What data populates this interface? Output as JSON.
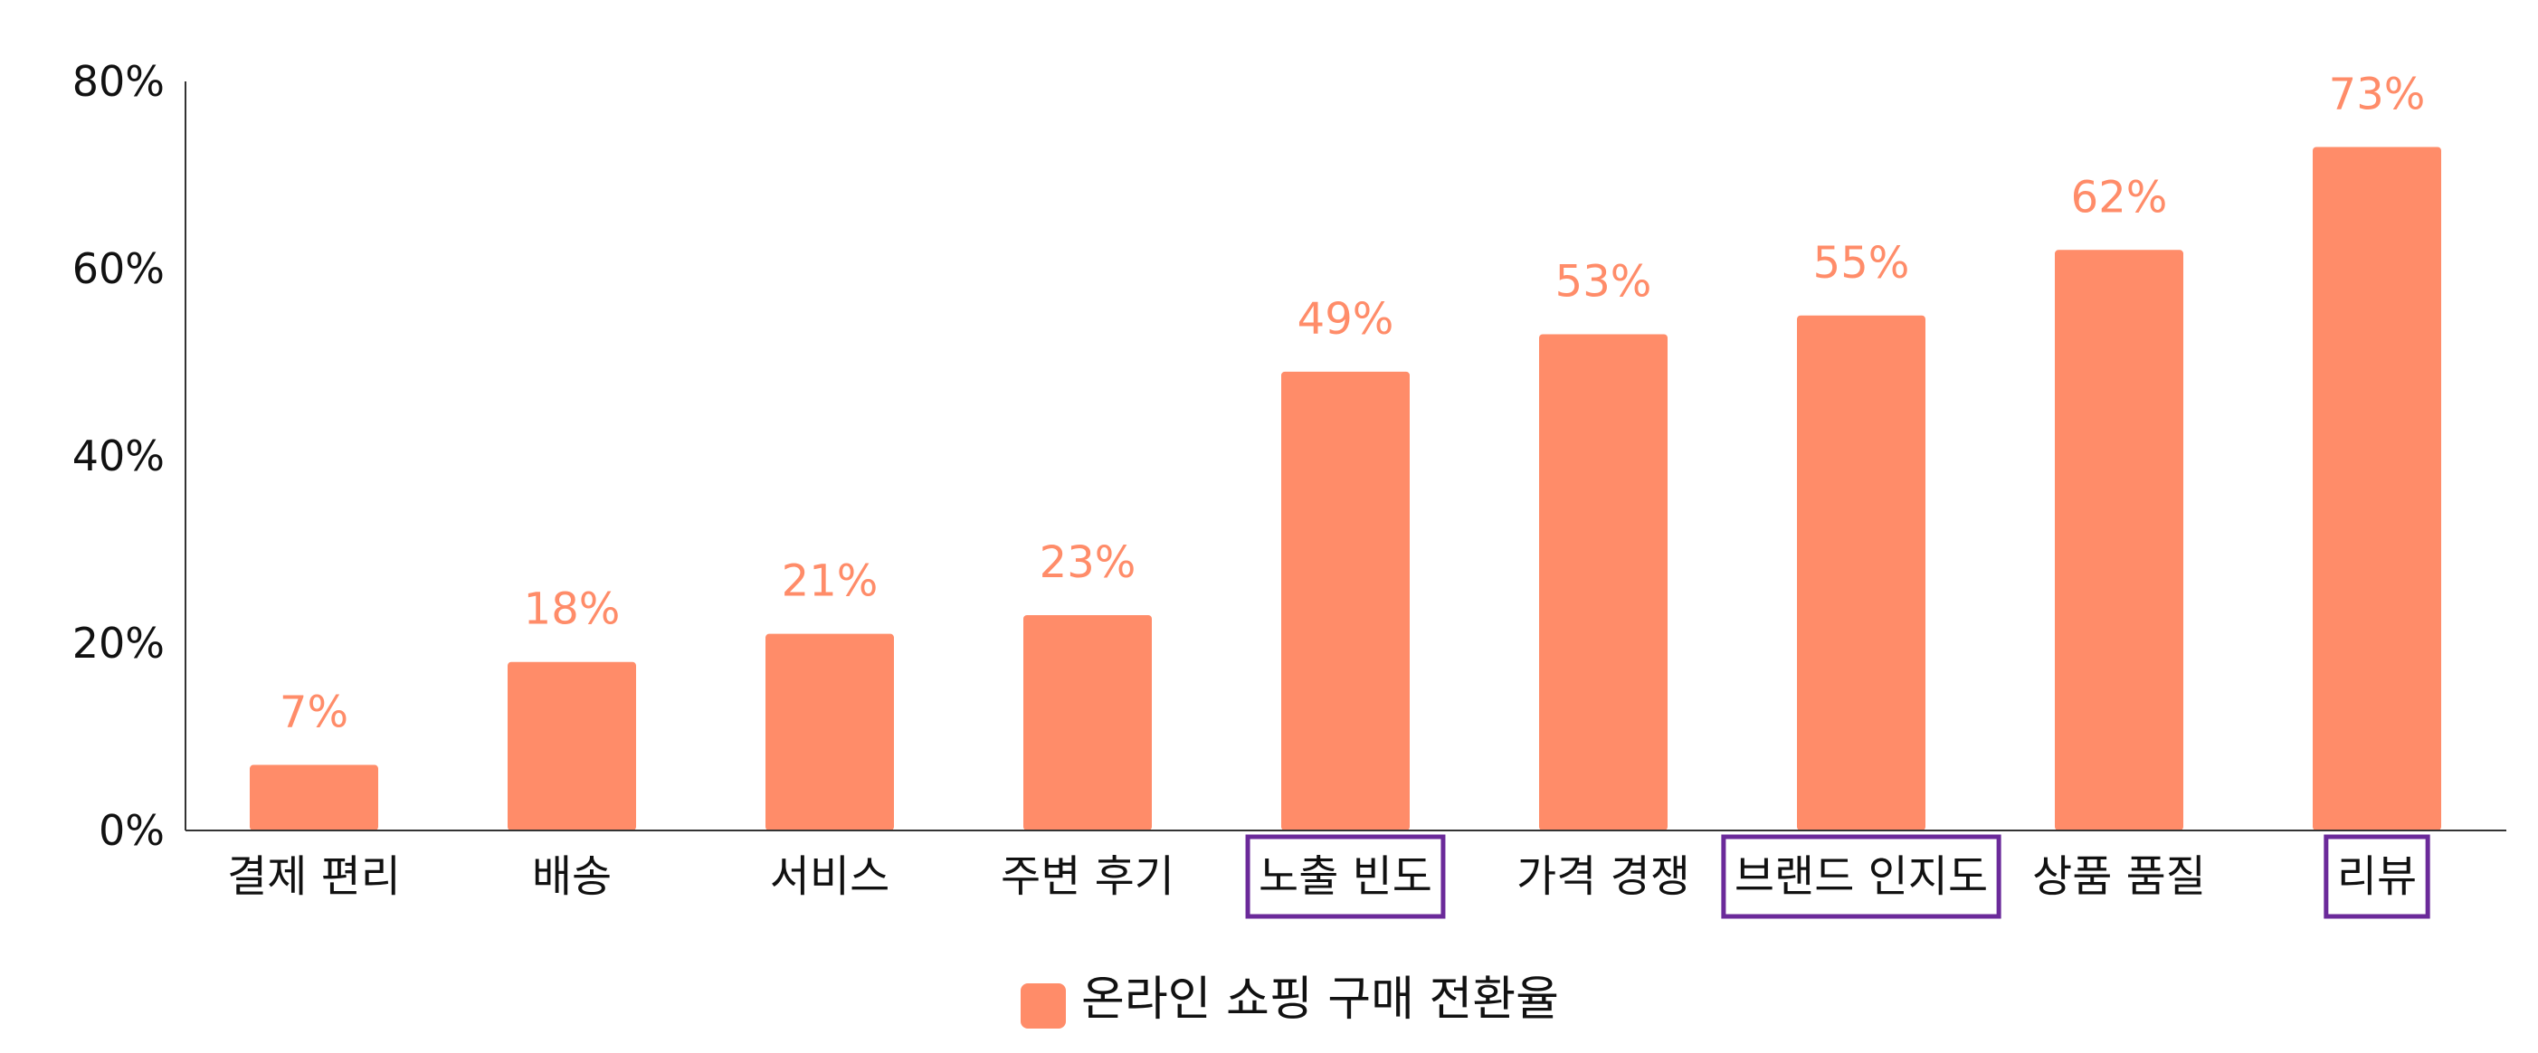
{
  "chart_data": {
    "type": "bar",
    "categories": [
      "결제 편리",
      "배송",
      "서비스",
      "주변 후기",
      "노출 빈도",
      "가격 경쟁",
      "브랜드 인지도",
      "상품 품질",
      "리뷰"
    ],
    "series": [
      {
        "name": "온라인 쇼핑 구매 전환율",
        "values": [
          7,
          18,
          21,
          23,
          49,
          53,
          55,
          62,
          73
        ],
        "labels": [
          "7%",
          "18%",
          "21%",
          "23%",
          "49%",
          "53%",
          "55%",
          "62%",
          "73%"
        ]
      }
    ],
    "highlighted_categories": [
      "노출 빈도",
      "브랜드 인지도",
      "리뷰"
    ],
    "ylim": [
      0,
      80
    ],
    "yticks": [
      0,
      20,
      40,
      60,
      80
    ],
    "ytick_labels": [
      "0%",
      "20%",
      "40%",
      "60%",
      "80%"
    ],
    "grid": false,
    "legend_position": "bottom-center",
    "colors": {
      "bar": "#FF8C69",
      "data_label": "#FF8C69",
      "highlight_box": "#6B2A9A",
      "axis": "#333333"
    }
  }
}
